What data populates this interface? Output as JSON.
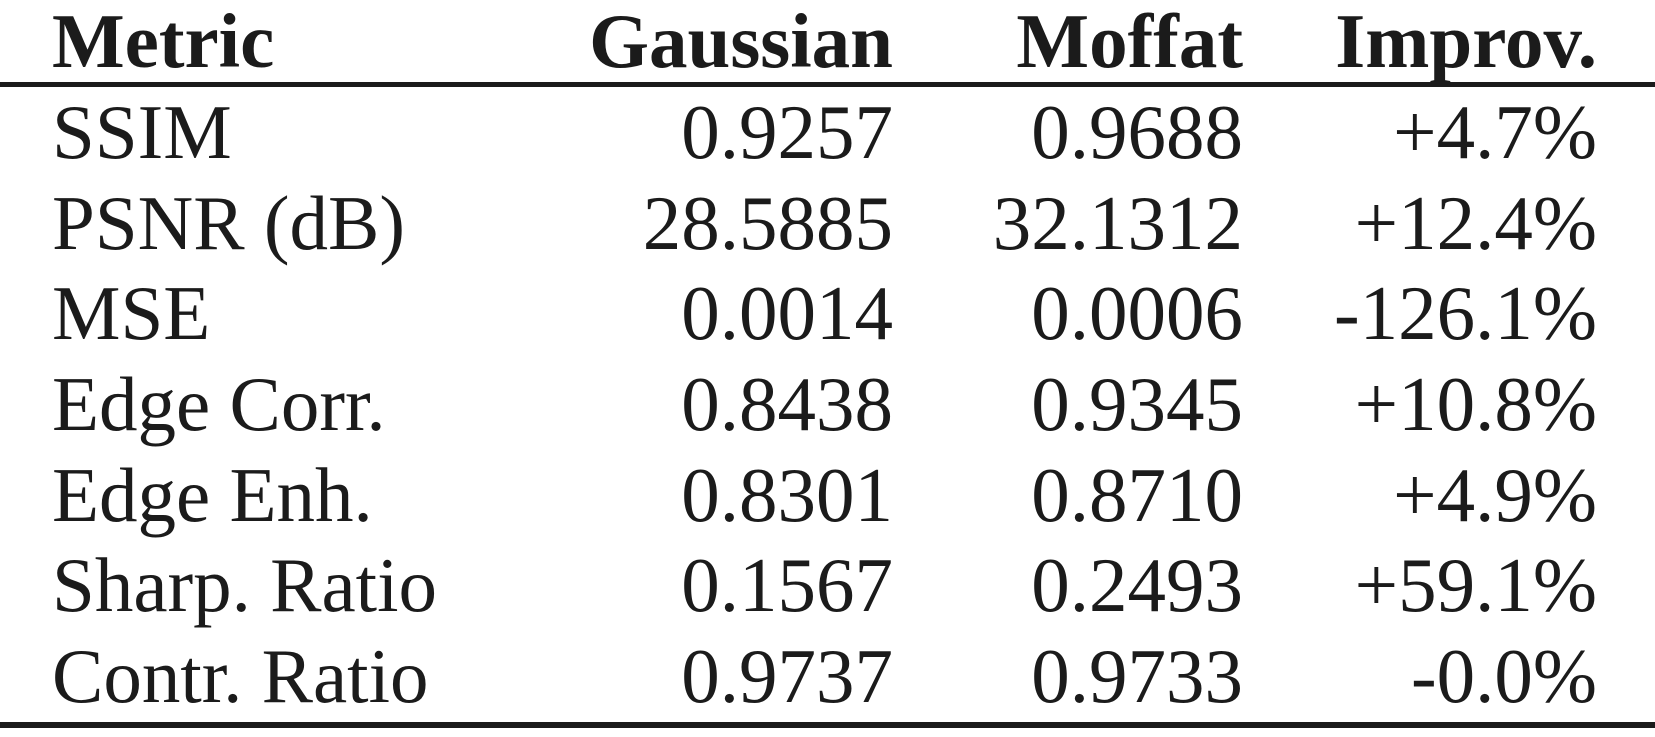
{
  "accent_color": "#1b1b1b",
  "background_color": "#ffffff",
  "table": {
    "columns": [
      "Metric",
      "Gaussian",
      "Moffat",
      "Improv."
    ],
    "rows": [
      {
        "metric": "SSIM",
        "gaussian": "0.9257",
        "moffat": "0.9688",
        "improv": "+4.7%"
      },
      {
        "metric": "PSNR (dB)",
        "gaussian": "28.5885",
        "moffat": "32.1312",
        "improv": "+12.4%"
      },
      {
        "metric": "MSE",
        "gaussian": "0.0014",
        "moffat": "0.0006",
        "improv": "-126.1%"
      },
      {
        "metric": "Edge Corr.",
        "gaussian": "0.8438",
        "moffat": "0.9345",
        "improv": "+10.8%"
      },
      {
        "metric": "Edge Enh.",
        "gaussian": "0.8301",
        "moffat": "0.8710",
        "improv": "+4.9%"
      },
      {
        "metric": "Sharp. Ratio",
        "gaussian": "0.1567",
        "moffat": "0.2493",
        "improv": "+59.1%"
      },
      {
        "metric": "Contr. Ratio",
        "gaussian": "0.9737",
        "moffat": "0.9733",
        "improv": "-0.0%"
      }
    ]
  },
  "chart_data": {
    "type": "table",
    "title": "",
    "columns": [
      "Metric",
      "Gaussian",
      "Moffat",
      "Improv."
    ],
    "rows": [
      [
        "SSIM",
        0.9257,
        0.9688,
        "+4.7%"
      ],
      [
        "PSNR (dB)",
        28.5885,
        32.1312,
        "+12.4%"
      ],
      [
        "MSE",
        0.0014,
        0.0006,
        "-126.1%"
      ],
      [
        "Edge Corr.",
        0.8438,
        0.9345,
        "+10.8%"
      ],
      [
        "Edge Enh.",
        0.8301,
        0.871,
        "+4.9%"
      ],
      [
        "Sharp. Ratio",
        0.1567,
        0.2493,
        "+59.1%"
      ],
      [
        "Contr. Ratio",
        0.9737,
        0.9733,
        "-0.0%"
      ]
    ]
  }
}
